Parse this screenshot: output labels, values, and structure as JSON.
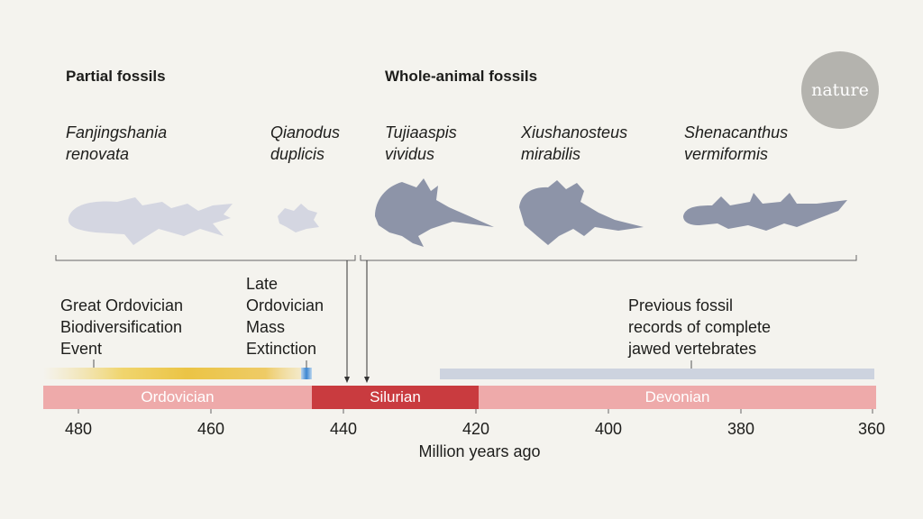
{
  "groups": {
    "partial": "Partial fossils",
    "whole": "Whole-animal fossils"
  },
  "logo": "nature",
  "species": [
    {
      "name": "Fanjingshania\nrenovata",
      "fill": "#d4d6e1"
    },
    {
      "name": "Qianodus\nduplicis",
      "fill": "#d4d6e1"
    },
    {
      "name": "Tujiaaspis\nvividus",
      "fill": "#8d94a8"
    },
    {
      "name": "Xiushanosteus\nmirabilis",
      "fill": "#8d94a8"
    },
    {
      "name": "Shenacanthus\nvermiformis",
      "fill": "#8d94a8"
    }
  ],
  "annotations": {
    "gobe": "Great Ordovician\nBiodiversification\nEvent",
    "extinction": "Late\nOrdovician\nMass\nExtinction",
    "previous": "Previous fossil\nrecords of complete\njawed vertebrates"
  },
  "periods": [
    {
      "name": "Ordovician",
      "color": "#eeaaaa"
    },
    {
      "name": "Silurian",
      "color": "#c93b3f"
    },
    {
      "name": "Devonian",
      "color": "#eeaaaa"
    }
  ],
  "axis": {
    "ticks": [
      "480",
      "460",
      "440",
      "420",
      "400",
      "380",
      "360"
    ],
    "label": "Million years ago"
  }
}
